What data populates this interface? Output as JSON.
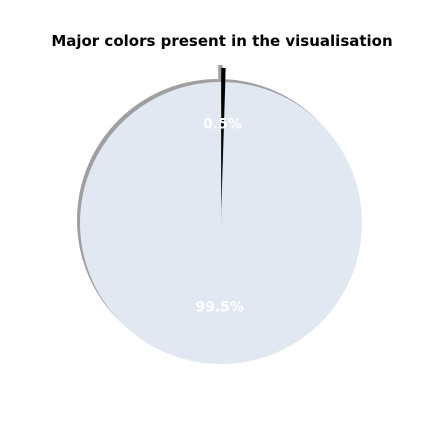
{
  "chart_data": {
    "type": "pie",
    "title": "Major colors present in the visualisation",
    "slices": [
      {
        "value": 99.5,
        "label": "99.5%",
        "color": "#e2e8f2"
      },
      {
        "value": 0.5,
        "label": "0.5%",
        "color": "#000000"
      }
    ],
    "start_angle_deg": 90,
    "direction": "counterclockwise",
    "shadow": true,
    "explode": [
      0,
      0.1
    ]
  }
}
